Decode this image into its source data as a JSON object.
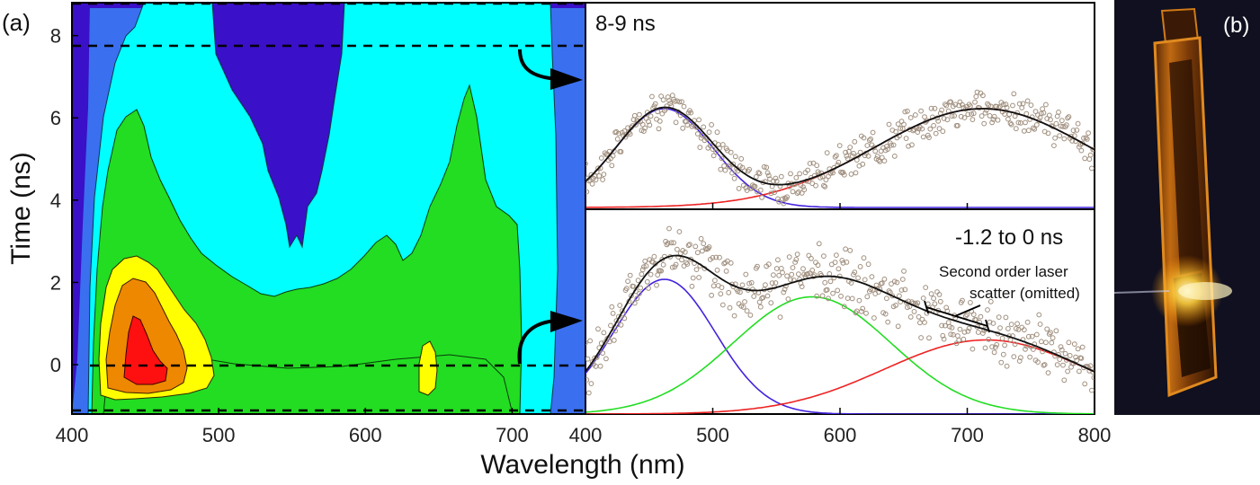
{
  "panel_a_label": "(a)",
  "panel_b_label": "(b)",
  "xlabel": "Wavelength (nm)",
  "ylabel": "Time (ns)",
  "chart_data": [
    {
      "type": "heatmap",
      "panel": "(a)",
      "xlim": [
        400,
        750
      ],
      "ylim": [
        -1.2,
        8.8
      ],
      "x_ticks": [
        "400",
        "500",
        "600",
        "700"
      ],
      "y_ticks": [
        "0",
        "2",
        "4",
        "6",
        "8"
      ],
      "dashed_lines_time": [
        7.7,
        0,
        -1.2,
        8.8
      ],
      "colors": [
        "#3a10c8",
        "#3a6ff0",
        "#00ffff",
        "#22dd22",
        "#ffff00",
        "#ee8800",
        "#ff1010"
      ],
      "features": [
        {
          "name": "blue-band",
          "x_range": [
            410,
            750
          ],
          "y_range": [
            -1.2,
            8.8
          ]
        },
        {
          "name": "cyan-band",
          "x_range": [
            415,
            745
          ],
          "y_range": [
            -1.2,
            7.8
          ]
        },
        {
          "name": "green-region",
          "x_range": [
            420,
            740
          ],
          "y_range": [
            -1.2,
            6.0
          ]
        },
        {
          "name": "yellow-peak-470",
          "x_center": 460,
          "y_center": 0.7
        },
        {
          "name": "red-peak-455",
          "x_center": 455,
          "y_center": 0.3
        },
        {
          "name": "yellow-spot-680",
          "x_center": 680,
          "y_center": 0.0
        },
        {
          "name": "indigo-dip-580",
          "x_range": [
            520,
            610
          ],
          "y_range": [
            2.5,
            8.8
          ]
        }
      ]
    },
    {
      "type": "scatter",
      "panel": "top-right",
      "title": "8-9 ns",
      "xlim": [
        400,
        800
      ],
      "series": [
        {
          "kind": "gaussian",
          "color": "#4422dd",
          "center": 462,
          "sigma": 38,
          "amp": 1.0
        },
        {
          "kind": "gaussian",
          "color": "#ee2222",
          "center": 712,
          "sigma": 85,
          "amp": 1.0
        },
        {
          "kind": "fit",
          "color": "#111111"
        }
      ],
      "scatter_color": "#a08f7e"
    },
    {
      "type": "scatter",
      "panel": "bottom-right",
      "title": "-1.2 to 0 ns",
      "xlim": [
        400,
        800
      ],
      "x_ticks": [
        "400",
        "500",
        "600",
        "700",
        "800"
      ],
      "series": [
        {
          "kind": "gaussian",
          "color": "#4422dd",
          "center": 462,
          "sigma": 40,
          "amp": 1.0
        },
        {
          "kind": "gaussian",
          "color": "#22dd22",
          "center": 578,
          "sigma": 62,
          "amp": 0.87
        },
        {
          "kind": "gaussian",
          "color": "#ee2222",
          "center": 715,
          "sigma": 80,
          "amp": 0.55
        },
        {
          "kind": "fit",
          "color": "#111111"
        }
      ],
      "scatter_color": "#a08f7e",
      "annotation": [
        "Second order laser",
        "scatter (omitted)"
      ]
    }
  ]
}
